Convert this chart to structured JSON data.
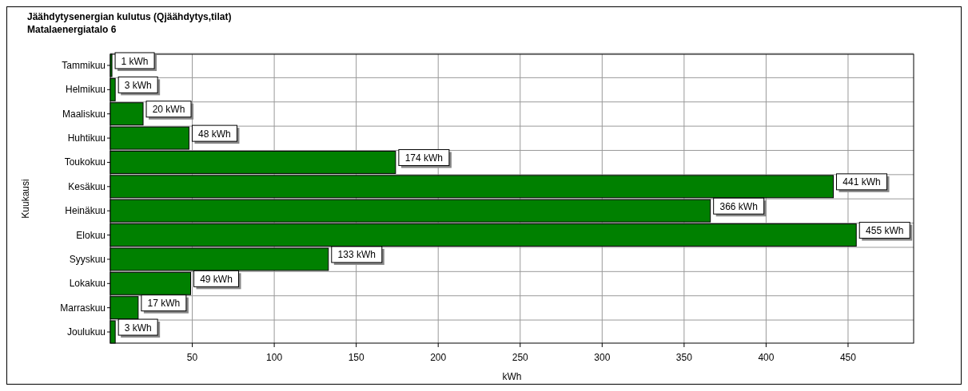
{
  "chart_data": {
    "type": "bar",
    "orientation": "horizontal",
    "title": "Jäähdytysenergian kulutus (Qjäähdytys,tilat)",
    "subtitle": "Matalaenergiatalo 6",
    "xlabel": "kWh",
    "ylabel": "Kuukausi",
    "categories": [
      "Tammikuu",
      "Helmikuu",
      "Maaliskuu",
      "Huhtikuu",
      "Toukokuu",
      "Kesäkuu",
      "Heinäkuu",
      "Elokuu",
      "Syyskuu",
      "Lokakuu",
      "Marraskuu",
      "Joulukuu"
    ],
    "values": [
      1,
      3,
      20,
      48,
      174,
      441,
      366,
      455,
      133,
      49,
      17,
      3
    ],
    "value_labels": [
      "1 kWh",
      "3 kWh",
      "20 kWh",
      "48 kWh",
      "174 kWh",
      "441 kWh",
      "366 kWh",
      "455 kWh",
      "133 kWh",
      "49 kWh",
      "17 kWh",
      "3 kWh"
    ],
    "color": "#008000",
    "xlim": [
      0,
      490
    ],
    "xticks": [
      50,
      100,
      150,
      200,
      250,
      300,
      350,
      400,
      450
    ],
    "grid": true
  }
}
